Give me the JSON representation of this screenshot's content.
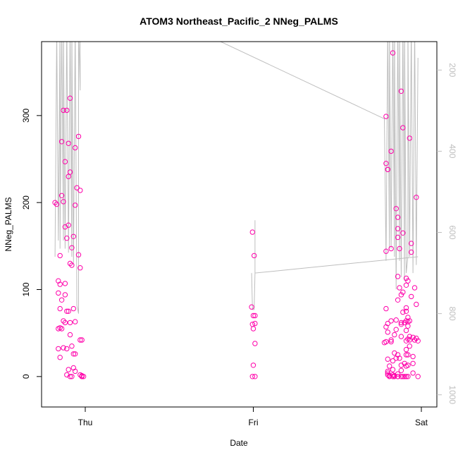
{
  "chart_data": {
    "type": "scatter",
    "title": "ATOM3 Northeast_Pacific_2 NNeg_PALMS",
    "xlabel": "Date",
    "ylabel": "NNeg_PALMS",
    "ylim": [
      -35,
      385
    ],
    "xlim": [
      0.0,
      2.0
    ],
    "x_ticks": [
      {
        "label": "Thu",
        "value": 0.0
      },
      {
        "label": "Fri",
        "value": 1.0
      },
      {
        "label": "Sat",
        "value": 2.0
      }
    ],
    "y_ticks": [
      0,
      100,
      200,
      300
    ],
    "secondary_axis": {
      "label": "",
      "color": "#bebebe",
      "reversed": true,
      "ticks": [
        200,
        400,
        600,
        800,
        1000
      ],
      "ylim": [
        1030,
        130
      ]
    },
    "grid": false,
    "legend": "none",
    "colors": {
      "points": "#ff00aa",
      "line": "#bebebe",
      "axis": "#000000"
    },
    "series": [
      {
        "marker": "open-circle",
        "points": [
          [
            -0.18,
            200
          ],
          [
            -0.17,
            198
          ],
          [
            -0.16,
            110
          ],
          [
            -0.15,
            106
          ],
          [
            -0.16,
            96
          ],
          [
            -0.15,
            78
          ],
          [
            -0.16,
            55
          ],
          [
            -0.15,
            56
          ],
          [
            -0.16,
            32
          ],
          [
            -0.15,
            22
          ],
          [
            -0.14,
            270
          ],
          [
            -0.14,
            208
          ],
          [
            -0.13,
            201
          ],
          [
            -0.15,
            139
          ],
          [
            -0.14,
            88
          ],
          [
            -0.13,
            64
          ],
          [
            -0.14,
            55
          ],
          [
            -0.13,
            33
          ],
          [
            -0.13,
            306
          ],
          [
            -0.12,
            247
          ],
          [
            -0.12,
            172
          ],
          [
            -0.12,
            107
          ],
          [
            -0.12,
            94
          ],
          [
            -0.11,
            75
          ],
          [
            -0.12,
            62
          ],
          [
            -0.11,
            32
          ],
          [
            -0.11,
            2
          ],
          [
            -0.11,
            306
          ],
          [
            -0.1,
            230
          ],
          [
            -0.11,
            159
          ],
          [
            -0.1,
            174
          ],
          [
            -0.09,
            130
          ],
          [
            -0.1,
            75
          ],
          [
            -0.09,
            0
          ],
          [
            -0.1,
            8
          ],
          [
            -0.1,
            268
          ],
          [
            -0.09,
            320
          ],
          [
            -0.09,
            235
          ],
          [
            -0.08,
            128
          ],
          [
            -0.09,
            62
          ],
          [
            -0.09,
            48
          ],
          [
            -0.08,
            148
          ],
          [
            -0.07,
            78
          ],
          [
            -0.08,
            35
          ],
          [
            -0.07,
            26
          ],
          [
            -0.07,
            10
          ],
          [
            -0.08,
            0
          ],
          [
            -0.06,
            263
          ],
          [
            -0.06,
            197
          ],
          [
            -0.07,
            161
          ],
          [
            -0.06,
            63
          ],
          [
            -0.06,
            26
          ],
          [
            -0.06,
            6
          ],
          [
            -0.05,
            217
          ],
          [
            -0.04,
            140
          ],
          [
            -0.04,
            276
          ],
          [
            -0.03,
            214
          ],
          [
            -0.03,
            125
          ],
          [
            -0.03,
            42
          ],
          [
            -0.02,
            42
          ],
          [
            -0.03,
            2
          ],
          [
            -0.02,
            1
          ],
          [
            -0.02,
            0
          ],
          [
            -0.01,
            0
          ],
          [
            -0.02,
            0
          ],
          [
            0.995,
            166
          ],
          [
            1.005,
            139
          ],
          [
            0.99,
            80
          ],
          [
            0.995,
            60
          ],
          [
            1.01,
            70
          ],
          [
            1.0,
            70
          ],
          [
            1.01,
            61
          ],
          [
            1.0,
            55
          ],
          [
            1.01,
            38
          ],
          [
            1.0,
            13
          ],
          [
            0.995,
            0
          ],
          [
            1.01,
            0
          ],
          [
            1.79,
            299
          ],
          [
            1.79,
            245
          ],
          [
            1.8,
            238
          ],
          [
            1.8,
            238
          ],
          [
            1.82,
            259
          ],
          [
            1.83,
            372
          ],
          [
            1.82,
            147
          ],
          [
            1.79,
            144
          ],
          [
            1.79,
            78
          ],
          [
            1.79,
            57
          ],
          [
            1.79,
            40
          ],
          [
            1.78,
            39
          ],
          [
            1.8,
            51
          ],
          [
            1.8,
            61
          ],
          [
            1.8,
            20
          ],
          [
            1.81,
            12
          ],
          [
            1.8,
            6
          ],
          [
            1.8,
            4
          ],
          [
            1.8,
            2
          ],
          [
            1.81,
            0
          ],
          [
            1.81,
            1
          ],
          [
            1.82,
            40
          ],
          [
            1.82,
            42
          ],
          [
            1.82,
            64
          ],
          [
            1.83,
            18
          ],
          [
            1.83,
            0
          ],
          [
            1.83,
            2
          ],
          [
            1.83,
            8
          ],
          [
            1.84,
            0
          ],
          [
            1.84,
            1
          ],
          [
            1.84,
            27
          ],
          [
            1.84,
            48
          ],
          [
            1.85,
            193
          ],
          [
            1.86,
            170
          ],
          [
            1.86,
            160
          ],
          [
            1.86,
            183
          ],
          [
            1.87,
            147
          ],
          [
            1.86,
            115
          ],
          [
            1.85,
            65
          ],
          [
            1.85,
            54
          ],
          [
            1.86,
            88
          ],
          [
            1.86,
            25
          ],
          [
            1.85,
            21
          ],
          [
            1.86,
            3
          ],
          [
            1.86,
            0
          ],
          [
            1.86,
            0
          ],
          [
            1.87,
            21
          ],
          [
            1.87,
            102
          ],
          [
            1.88,
            328
          ],
          [
            1.88,
            94
          ],
          [
            1.88,
            60
          ],
          [
            1.88,
            62
          ],
          [
            1.88,
            46
          ],
          [
            1.88,
            13
          ],
          [
            1.88,
            7
          ],
          [
            1.88,
            0
          ],
          [
            1.89,
            0
          ],
          [
            1.89,
            286
          ],
          [
            1.89,
            165
          ],
          [
            1.89,
            97
          ],
          [
            1.89,
            74
          ],
          [
            1.9,
            62
          ],
          [
            1.9,
            15
          ],
          [
            1.9,
            0
          ],
          [
            1.91,
            113
          ],
          [
            1.91,
            105
          ],
          [
            1.91,
            79
          ],
          [
            1.91,
            75
          ],
          [
            1.91,
            64
          ],
          [
            1.91,
            53
          ],
          [
            1.91,
            41
          ],
          [
            1.91,
            31
          ],
          [
            1.91,
            25
          ],
          [
            1.91,
            12
          ],
          [
            1.91,
            0
          ],
          [
            1.92,
            110
          ],
          [
            1.92,
            68
          ],
          [
            1.92,
            63
          ],
          [
            1.92,
            58
          ],
          [
            1.92,
            43
          ],
          [
            1.92,
            25
          ],
          [
            1.92,
            13
          ],
          [
            1.92,
            0
          ],
          [
            1.93,
            274
          ],
          [
            1.93,
            64
          ],
          [
            1.93,
            46
          ],
          [
            1.93,
            42
          ],
          [
            1.93,
            35
          ],
          [
            1.94,
            153
          ],
          [
            1.94,
            143
          ],
          [
            1.94,
            92
          ],
          [
            1.95,
            45
          ],
          [
            1.95,
            23
          ],
          [
            1.95,
            4
          ],
          [
            1.95,
            15
          ],
          [
            1.96,
            102
          ],
          [
            1.96,
            42
          ],
          [
            1.97,
            206
          ],
          [
            1.97,
            83
          ],
          [
            1.97,
            44
          ],
          [
            1.98,
            41
          ],
          [
            1.98,
            0
          ]
        ]
      },
      {
        "axis": "secondary",
        "marker": "line",
        "points": [
          [
            -0.18,
            660
          ],
          [
            -0.17,
            100
          ],
          [
            -0.16,
            620
          ],
          [
            -0.15,
            90
          ],
          [
            -0.15,
            640
          ],
          [
            -0.14,
            90
          ],
          [
            -0.13,
            620
          ],
          [
            -0.13,
            90
          ],
          [
            -0.12,
            640
          ],
          [
            -0.11,
            90
          ],
          [
            -0.1,
            650
          ],
          [
            -0.09,
            90
          ],
          [
            -0.08,
            660
          ],
          [
            -0.08,
            90
          ],
          [
            -0.07,
            680
          ],
          [
            -0.06,
            90
          ],
          [
            -0.05,
            780
          ],
          [
            -0.04,
            800
          ],
          [
            -0.04,
            90
          ],
          [
            -0.03,
            250
          ],
          [
            -0.03,
            90
          ],
          [
            0.6,
            90
          ],
          [
            1.78,
            320
          ],
          [
            1.79,
            670
          ],
          [
            1.8,
            90
          ],
          [
            1.81,
            640
          ],
          [
            1.81,
            90
          ],
          [
            1.82,
            640
          ],
          [
            1.83,
            90
          ],
          [
            1.84,
            660
          ],
          [
            1.84,
            90
          ],
          [
            1.85,
            740
          ],
          [
            1.86,
            90
          ],
          [
            1.87,
            670
          ],
          [
            1.87,
            90
          ],
          [
            1.88,
            710
          ],
          [
            1.89,
            90
          ],
          [
            1.9,
            720
          ],
          [
            1.9,
            90
          ],
          [
            1.91,
            700
          ],
          [
            1.92,
            660
          ],
          [
            1.92,
            90
          ],
          [
            1.93,
            660
          ],
          [
            1.94,
            90
          ],
          [
            1.95,
            700
          ],
          [
            1.96,
            90
          ],
          [
            1.97,
            680
          ],
          [
            1.98,
            170
          ]
        ]
      },
      {
        "axis": "secondary",
        "marker": "line",
        "points": [
          [
            0.99,
            700
          ],
          [
            0.995,
            790
          ],
          [
            1.005,
            790
          ],
          [
            1.01,
            700
          ],
          [
            1.01,
            610
          ],
          [
            1.01,
            570
          ],
          [
            1.01,
            700
          ],
          [
            1.98,
            660
          ]
        ]
      }
    ]
  }
}
